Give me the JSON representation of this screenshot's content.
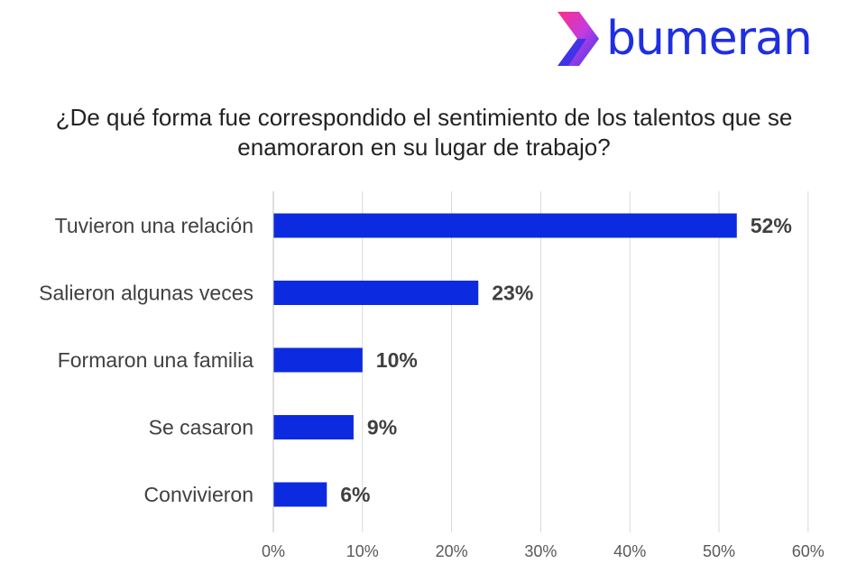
{
  "brand": {
    "name": "bumeran",
    "colors": {
      "magenta": "#ee2a7b",
      "blue": "#1f2fe0",
      "purple": "#6a2ee8"
    }
  },
  "chart_data": {
    "type": "bar",
    "orientation": "horizontal",
    "title": "¿De qué forma fue correspondido el sentimiento de los talentos que se enamoraron en su lugar de trabajo?",
    "categories": [
      "Tuvieron una relación",
      "Salieron algunas veces",
      "Formaron una familia",
      "Se casaron",
      "Convivieron"
    ],
    "values": [
      52,
      23,
      10,
      9,
      6
    ],
    "data_labels": [
      "52%",
      "23%",
      "10%",
      "9%",
      "6%"
    ],
    "xlim": [
      0,
      60
    ],
    "x_ticks": [
      "0%",
      "10%",
      "20%",
      "30%",
      "40%",
      "50%",
      "60%"
    ],
    "bar_color": "#0c2ae0",
    "grid": true,
    "legend": "none"
  }
}
